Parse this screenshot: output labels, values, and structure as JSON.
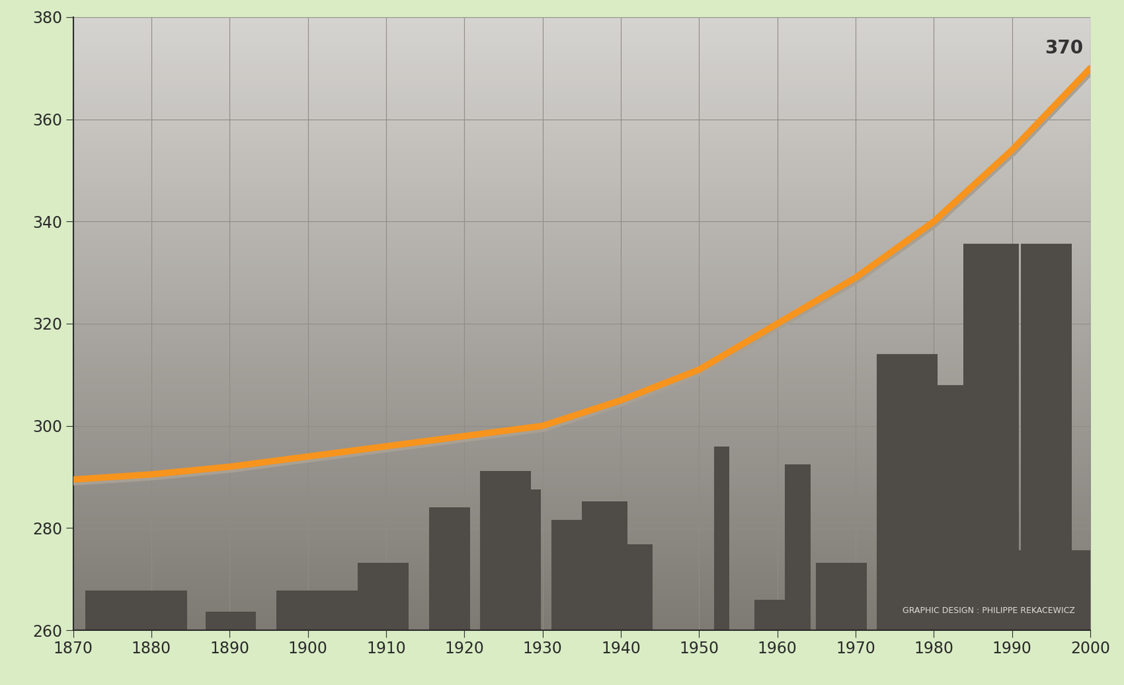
{
  "chart_data": {
    "type": "line",
    "x": [
      1870,
      1880,
      1890,
      1900,
      1910,
      1920,
      1930,
      1940,
      1950,
      1960,
      1970,
      1980,
      1990,
      2000
    ],
    "values": [
      289.5,
      290.5,
      292,
      294,
      296,
      298,
      300,
      305,
      311,
      320,
      329,
      340,
      354,
      370
    ],
    "color": "#f7941d",
    "xlim": [
      1870,
      2000
    ],
    "xticks": [
      1870,
      1880,
      1890,
      1900,
      1910,
      1920,
      1930,
      1940,
      1950,
      1960,
      1970,
      1980,
      1990,
      2000
    ],
    "ylim": [
      260,
      380
    ],
    "yticks": [
      260,
      280,
      300,
      320,
      340,
      360,
      380
    ],
    "grid": true,
    "end_label": "370",
    "credit": "GRAPHIC DESIGN : PHILIPPE REKACEWICZ"
  }
}
